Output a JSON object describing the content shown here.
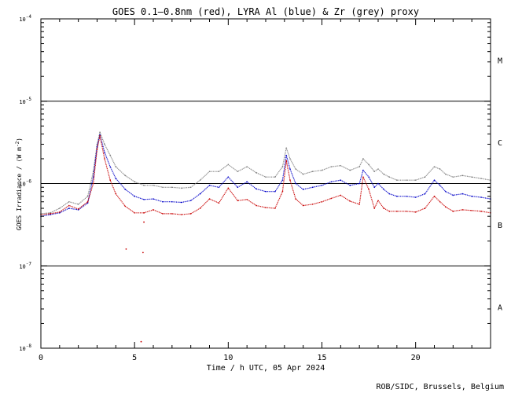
{
  "chart_data": {
    "type": "scatter",
    "title": "GOES 0.1—0.8nm (red), LYRA Al (blue) & Zr (grey) proxy",
    "xlabel": "Time / h UTC, 05 Apr 2024",
    "ylabel": "GOES Irradiance / (W m",
    "ylabel_exp": "-2",
    "ylabel_close": ")",
    "credit": "ROB/SIDC, Brussels, Belgium",
    "xlim": [
      0,
      24
    ],
    "ylim": [
      1e-08,
      0.0001
    ],
    "y_scale": "log",
    "x_ticks": [
      {
        "value": 0,
        "label": "0"
      },
      {
        "value": 5,
        "label": "5"
      },
      {
        "value": 10,
        "label": "10"
      },
      {
        "value": 15,
        "label": "15"
      },
      {
        "value": 20,
        "label": "20"
      }
    ],
    "y_ticks": [
      {
        "value": 1e-08,
        "base": "10",
        "exp": "-8"
      },
      {
        "value": 1e-07,
        "base": "10",
        "exp": "-7"
      },
      {
        "value": 1e-06,
        "base": "10",
        "exp": "-6"
      },
      {
        "value": 1e-05,
        "base": "10",
        "exp": "-5"
      },
      {
        "value": 0.0001,
        "base": "10",
        "exp": "-4"
      }
    ],
    "flare_classes": [
      {
        "label": "A",
        "value": 3.16e-08
      },
      {
        "label": "B",
        "value": 3.16e-07
      },
      {
        "label": "C",
        "value": 3.16e-06
      },
      {
        "label": "M",
        "value": 3.16e-05
      }
    ],
    "threshold_lines": [
      1e-07,
      1e-06,
      1e-05
    ],
    "series": [
      {
        "color": "#808080",
        "x": [
          0.0,
          0.5,
          1.0,
          1.5,
          2.0,
          2.5,
          2.8,
          3.0,
          3.15,
          3.4,
          3.7,
          4.0,
          4.5,
          5.0,
          5.5,
          6.0,
          6.5,
          7.0,
          7.5,
          8.0,
          8.5,
          9.0,
          9.5,
          10.0,
          10.5,
          11.0,
          11.5,
          12.0,
          12.5,
          12.9,
          13.1,
          13.3,
          13.6,
          14.0,
          14.5,
          15.0,
          15.5,
          16.0,
          16.5,
          17.0,
          17.2,
          17.5,
          17.8,
          18.0,
          18.3,
          18.6,
          19.0,
          19.5,
          20.0,
          20.5,
          21.0,
          21.3,
          21.6,
          22.0,
          22.5,
          23.0,
          23.5,
          24.0
        ],
        "y": [
          4.3e-07,
          4.4e-07,
          5e-07,
          6e-07,
          5.6e-07,
          7e-07,
          1.4e-06,
          3e-06,
          4.2e-06,
          3e-06,
          2.2e-06,
          1.6e-06,
          1.25e-06,
          1.05e-06,
          9.5e-07,
          9.5e-07,
          9e-07,
          9e-07,
          8.8e-07,
          9e-07,
          1.1e-06,
          1.4e-06,
          1.4e-06,
          1.7e-06,
          1.4e-06,
          1.6e-06,
          1.35e-06,
          1.2e-06,
          1.2e-06,
          1.6e-06,
          2.7e-06,
          2e-06,
          1.5e-06,
          1.3e-06,
          1.4e-06,
          1.45e-06,
          1.6e-06,
          1.65e-06,
          1.45e-06,
          1.6e-06,
          2e-06,
          1.7e-06,
          1.4e-06,
          1.5e-06,
          1.3e-06,
          1.2e-06,
          1.1e-06,
          1.1e-06,
          1.1e-06,
          1.2e-06,
          1.6e-06,
          1.5e-06,
          1.3e-06,
          1.2e-06,
          1.25e-06,
          1.2e-06,
          1.15e-06,
          1.1e-06
        ]
      },
      {
        "color": "#0000c8",
        "x": [
          0.0,
          0.5,
          1.0,
          1.5,
          2.0,
          2.5,
          2.8,
          3.0,
          3.15,
          3.4,
          3.7,
          4.0,
          4.5,
          5.0,
          5.5,
          6.0,
          6.5,
          7.0,
          7.5,
          8.0,
          8.5,
          9.0,
          9.5,
          10.0,
          10.5,
          11.0,
          11.5,
          12.0,
          12.5,
          12.9,
          13.1,
          13.3,
          13.6,
          14.0,
          14.5,
          15.0,
          15.5,
          16.0,
          16.5,
          17.0,
          17.2,
          17.5,
          17.8,
          18.0,
          18.3,
          18.6,
          19.0,
          19.5,
          20.0,
          20.5,
          21.0,
          21.3,
          21.6,
          22.0,
          22.5,
          23.0,
          23.5,
          24.0
        ],
        "y": [
          4e-07,
          4.2e-07,
          4.4e-07,
          5e-07,
          4.8e-07,
          5.8e-07,
          1.2e-06,
          2.8e-06,
          3.9e-06,
          2.4e-06,
          1.6e-06,
          1.15e-06,
          8.5e-07,
          7e-07,
          6.4e-07,
          6.5e-07,
          6e-07,
          6e-07,
          5.9e-07,
          6.2e-07,
          7.5e-07,
          9.5e-07,
          9e-07,
          1.2e-06,
          9e-07,
          1.05e-06,
          8.6e-07,
          8e-07,
          8e-07,
          1.1e-06,
          2.2e-06,
          1.5e-06,
          1e-06,
          8.5e-07,
          9e-07,
          9.5e-07,
          1.05e-06,
          1.1e-06,
          9.5e-07,
          1e-06,
          1.45e-06,
          1.2e-06,
          9e-07,
          1e-06,
          8.5e-07,
          7.5e-07,
          7e-07,
          7e-07,
          6.8e-07,
          7.5e-07,
          1.1e-06,
          9.5e-07,
          8e-07,
          7.2e-07,
          7.5e-07,
          7e-07,
          6.8e-07,
          6.5e-07
        ]
      },
      {
        "color": "#c80000",
        "x": [
          0.0,
          0.5,
          1.0,
          1.5,
          2.0,
          2.5,
          2.8,
          3.0,
          3.15,
          3.4,
          3.7,
          4.0,
          4.5,
          5.0,
          5.5,
          6.0,
          6.5,
          7.0,
          7.5,
          8.0,
          8.5,
          9.0,
          9.5,
          10.0,
          10.5,
          11.0,
          11.5,
          12.0,
          12.5,
          12.9,
          13.1,
          13.3,
          13.6,
          14.0,
          14.5,
          15.0,
          15.5,
          16.0,
          16.5,
          17.0,
          17.2,
          17.5,
          17.8,
          18.0,
          18.3,
          18.6,
          19.0,
          19.5,
          20.0,
          20.5,
          21.0,
          21.3,
          21.6,
          22.0,
          22.5,
          23.0,
          23.5,
          24.0
        ],
        "y": [
          4.2e-07,
          4.3e-07,
          4.5e-07,
          5.4e-07,
          4.9e-07,
          6e-07,
          1e-06,
          2.6e-06,
          3.8e-06,
          2e-06,
          1.1e-06,
          7.5e-07,
          5.3e-07,
          4.4e-07,
          4.4e-07,
          4.8e-07,
          4.3e-07,
          4.3e-07,
          4.2e-07,
          4.3e-07,
          5e-07,
          6.5e-07,
          5.8e-07,
          8.8e-07,
          6.2e-07,
          6.4e-07,
          5.4e-07,
          5.1e-07,
          5e-07,
          8e-07,
          1.9e-06,
          1.1e-06,
          6.5e-07,
          5.4e-07,
          5.6e-07,
          6e-07,
          6.6e-07,
          7.2e-07,
          6.1e-07,
          5.6e-07,
          1.2e-06,
          8.5e-07,
          5e-07,
          6.2e-07,
          5e-07,
          4.6e-07,
          4.6e-07,
          4.6e-07,
          4.5e-07,
          5e-07,
          7e-07,
          6e-07,
          5.2e-07,
          4.6e-07,
          4.8e-07,
          4.7e-07,
          4.6e-07,
          4.4e-07
        ]
      }
    ],
    "outliers": [
      {
        "color": "#c80000",
        "x": 4.55,
        "y": 1.6e-07
      },
      {
        "color": "#c80000",
        "x": 5.45,
        "y": 1.45e-07
      },
      {
        "color": "#c80000",
        "x": 5.5,
        "y": 3.4e-07
      },
      {
        "color": "#c80000",
        "x": 5.35,
        "y": 1.2e-08
      }
    ]
  }
}
